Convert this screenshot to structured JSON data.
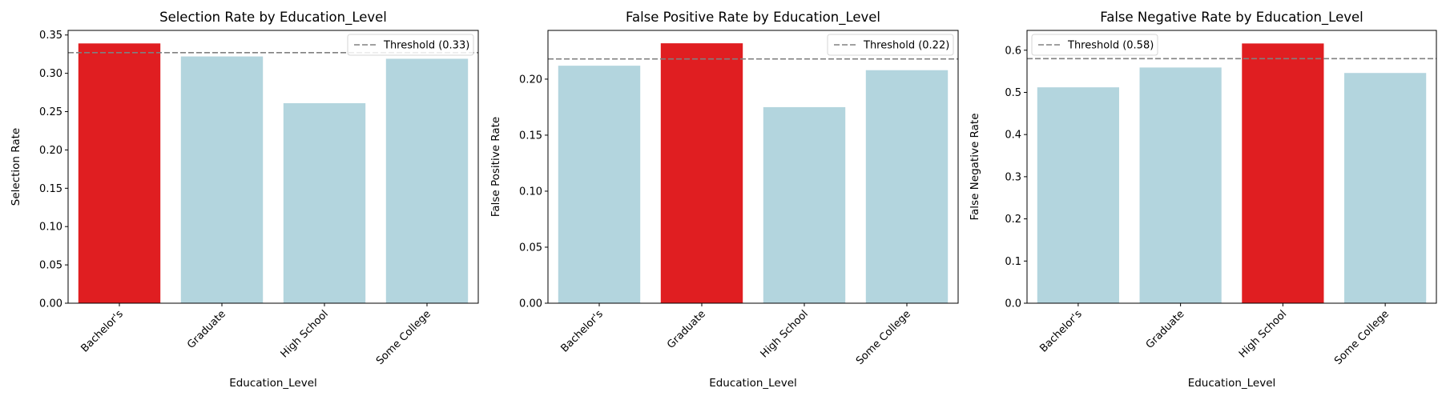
{
  "chart_data": [
    {
      "type": "bar",
      "title": "Selection Rate by Education_Level",
      "xlabel": "Education_Level",
      "ylabel": "Selection Rate",
      "categories": [
        "Bachelor's",
        "Graduate",
        "High School",
        "Some College"
      ],
      "values": [
        0.339,
        0.322,
        0.261,
        0.319
      ],
      "highlight": "Bachelor's",
      "ylim": [
        0,
        0.356
      ],
      "yticks": [
        "0.00",
        "0.05",
        "0.10",
        "0.15",
        "0.20",
        "0.25",
        "0.30",
        "0.35"
      ],
      "ytick_values": [
        0,
        0.05,
        0.1,
        0.15,
        0.2,
        0.25,
        0.3,
        0.35
      ],
      "threshold": 0.327,
      "legend_label": "Threshold (0.33)",
      "legend_position": "top-right"
    },
    {
      "type": "bar",
      "title": "False Positive Rate by Education_Level",
      "xlabel": "Education_Level",
      "ylabel": "False Positive Rate",
      "categories": [
        "Bachelor's",
        "Graduate",
        "High School",
        "Some College"
      ],
      "values": [
        0.212,
        0.232,
        0.175,
        0.208
      ],
      "highlight": "Graduate",
      "ylim": [
        0,
        0.2435
      ],
      "yticks": [
        "0.00",
        "0.05",
        "0.10",
        "0.15",
        "0.20"
      ],
      "ytick_values": [
        0,
        0.05,
        0.1,
        0.15,
        0.2
      ],
      "threshold": 0.218,
      "legend_label": "Threshold (0.22)",
      "legend_position": "top-right"
    },
    {
      "type": "bar",
      "title": "False Negative Rate by Education_Level",
      "xlabel": "Education_Level",
      "ylabel": "False Negative Rate",
      "categories": [
        "Bachelor's",
        "Graduate",
        "High School",
        "Some College"
      ],
      "values": [
        0.512,
        0.559,
        0.616,
        0.546
      ],
      "highlight": "High School",
      "ylim": [
        0,
        0.647
      ],
      "yticks": [
        "0.0",
        "0.1",
        "0.2",
        "0.3",
        "0.4",
        "0.5",
        "0.6"
      ],
      "ytick_values": [
        0,
        0.1,
        0.2,
        0.3,
        0.4,
        0.5,
        0.6
      ],
      "threshold": 0.58,
      "legend_label": "Threshold (0.58)",
      "legend_position": "top-left"
    }
  ],
  "colors": {
    "bar": "#b3d5de",
    "highlight": "#e01e21",
    "threshold": "#808080",
    "axis": "#000000"
  }
}
